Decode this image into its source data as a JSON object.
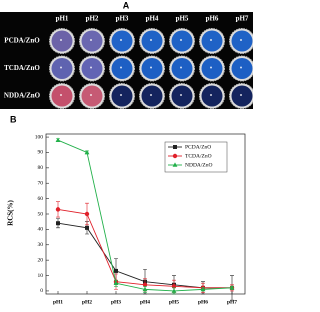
{
  "photo_panel": {
    "label": "A",
    "columns": [
      "pH1",
      "pH2",
      "pH3",
      "pH4",
      "pH5",
      "pH6",
      "pH7"
    ],
    "rows": [
      "PCDA/ZnO",
      "TCDA/ZnO",
      "NDDA/ZnO"
    ],
    "well_colors": [
      [
        "#6c63a8",
        "#6a67b0",
        "#2063c8",
        "#1f62c6",
        "#1f62c6",
        "#1f62c6",
        "#1f62c6"
      ],
      [
        "#5f63b0",
        "#6264b4",
        "#1d5fc4",
        "#1d5fc4",
        "#1d5fc4",
        "#1d5fc4",
        "#1d5fc4"
      ],
      [
        "#c4506c",
        "#c65a74",
        "#14245e",
        "#14245e",
        "#14245e",
        "#14245e",
        "#14245e"
      ]
    ]
  },
  "chart_data": {
    "type": "line",
    "label": "B",
    "y_label": "RCS(%)",
    "categories": [
      "pH1",
      "pH2",
      "pH3",
      "pH4",
      "pH5",
      "pH6",
      "pH7"
    ],
    "ylim": [
      -2,
      102
    ],
    "yticks": [
      0,
      10,
      20,
      30,
      40,
      50,
      60,
      70,
      80,
      90,
      100
    ],
    "legend": "upper right",
    "grid": false,
    "series": [
      {
        "name": "PCDA/ZnO",
        "color": "#222222",
        "marker": "square",
        "values": [
          44,
          41,
          13,
          6,
          4,
          2,
          2
        ],
        "errors": [
          3,
          4,
          8,
          8,
          6,
          4,
          8
        ]
      },
      {
        "name": "TCDA/ZnO",
        "color": "#e0202a",
        "marker": "circle",
        "values": [
          53,
          50,
          6,
          4,
          3,
          2,
          2
        ],
        "errors": [
          5,
          7,
          5,
          4,
          4,
          3,
          2
        ]
      },
      {
        "name": "NDDA/ZnO",
        "color": "#22b04a",
        "marker": "triangle",
        "values": [
          98,
          90,
          5,
          1,
          0,
          1,
          2
        ],
        "errors": [
          1,
          1,
          2,
          2,
          2,
          1,
          1
        ]
      }
    ]
  }
}
